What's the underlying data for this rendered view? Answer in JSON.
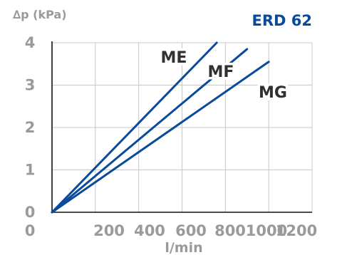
{
  "chart_data": {
    "type": "line",
    "title": "ERD 62",
    "ylabel": "∆p (kPa)",
    "xlabel": "l/min",
    "xlim": [
      0,
      1200
    ],
    "ylim": [
      0,
      4
    ],
    "grid": true,
    "x_ticks": [
      "0",
      "200",
      "400",
      "600",
      "800",
      "1000",
      "1200"
    ],
    "y_ticks": [
      "0",
      "1",
      "2",
      "3",
      "4"
    ],
    "series_color": "#0a4a9a",
    "series": [
      {
        "name": "ME",
        "x": [
          0,
          760
        ],
        "y": [
          0,
          4.0
        ]
      },
      {
        "name": "MF",
        "x": [
          0,
          900
        ],
        "y": [
          0,
          3.85
        ]
      },
      {
        "name": "MG",
        "x": [
          0,
          1000
        ],
        "y": [
          0,
          3.55
        ]
      }
    ]
  }
}
